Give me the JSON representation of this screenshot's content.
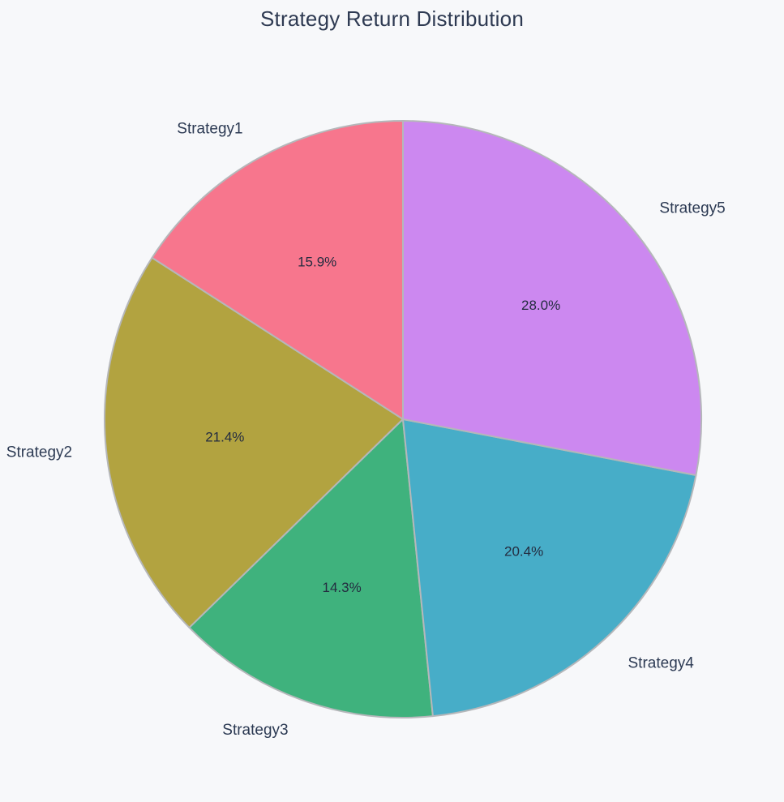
{
  "title": "Strategy Return Distribution",
  "canvas": {
    "background": "#f7f8fa"
  },
  "chart_data": {
    "type": "pie",
    "title": "Strategy Return Distribution",
    "title_color": "#2e3a52",
    "labels": [
      "Strategy1",
      "Strategy2",
      "Strategy3",
      "Strategy4",
      "Strategy5"
    ],
    "values_percent": [
      15.9,
      21.4,
      14.3,
      20.4,
      28.0
    ],
    "percent_labels": [
      "15.9%",
      "21.4%",
      "14.3%",
      "20.4%",
      "28.0%"
    ],
    "colors": [
      "#f7768d",
      "#b2a340",
      "#3fb27d",
      "#47adc8",
      "#cc88f0"
    ],
    "slice_border_color": "#b5b7ba",
    "label_color": "#2c3a53",
    "value_label_color": "#242c40",
    "start_angle_deg": 90,
    "direction": "counterclockwise",
    "legend": "none",
    "donut": false
  }
}
